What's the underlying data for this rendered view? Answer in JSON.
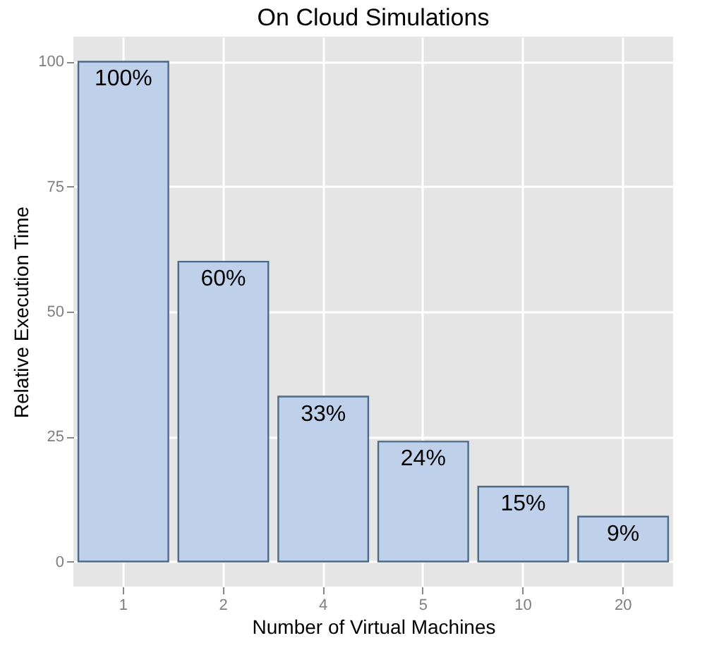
{
  "chart_data": {
    "type": "bar",
    "title": "On Cloud Simulations",
    "xlabel": "Number of Virtual Machines",
    "ylabel": "Relative Execution Time",
    "categories": [
      "1",
      "2",
      "4",
      "5",
      "10",
      "20"
    ],
    "values": [
      100,
      60,
      33,
      24,
      15,
      9
    ],
    "value_labels": [
      "100%",
      "60%",
      "33%",
      "24%",
      "15%",
      "9%"
    ],
    "color": "#bfd1ea",
    "ylim": [
      -5,
      105
    ],
    "yticks": [
      0,
      25,
      50,
      75,
      100
    ],
    "grid": true
  }
}
